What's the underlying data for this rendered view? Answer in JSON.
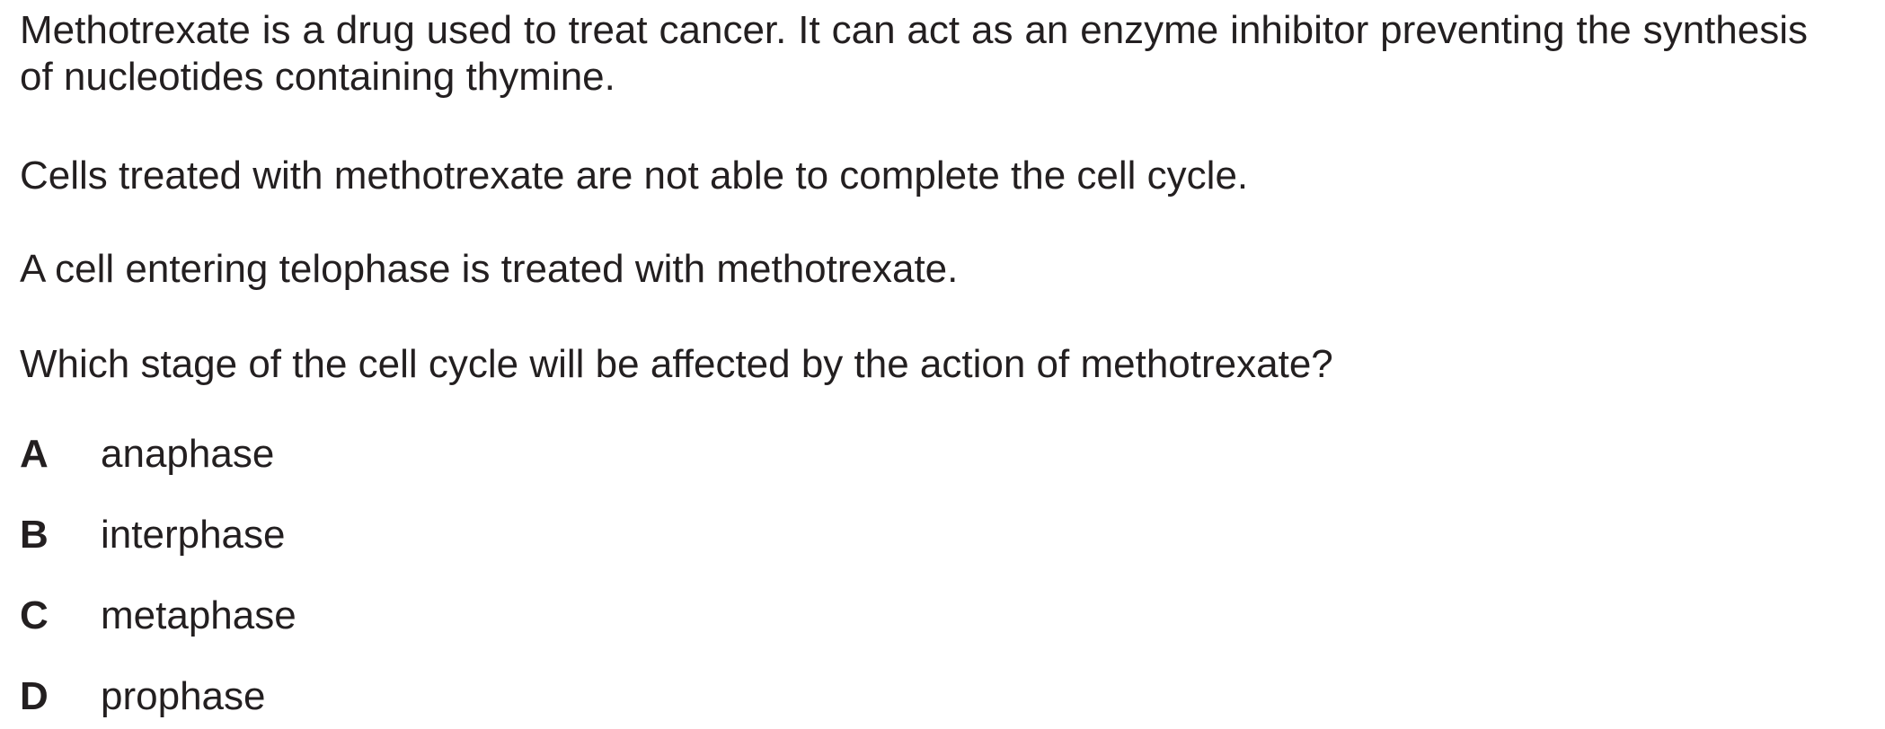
{
  "question": {
    "intro": "Methotrexate is a drug used to treat cancer. It can act as an enzyme inhibitor preventing the synthesis of nucleotides containing thymine.",
    "statement_1": "Cells treated with methotrexate are not able to complete the cell cycle.",
    "statement_2": "A cell entering telophase is treated with methotrexate.",
    "prompt": "Which stage of the cell cycle will be affected by the action of methotrexate?"
  },
  "options": [
    {
      "letter": "A",
      "text": "anaphase"
    },
    {
      "letter": "B",
      "text": "interphase"
    },
    {
      "letter": "C",
      "text": "metaphase"
    },
    {
      "letter": "D",
      "text": "prophase"
    }
  ]
}
